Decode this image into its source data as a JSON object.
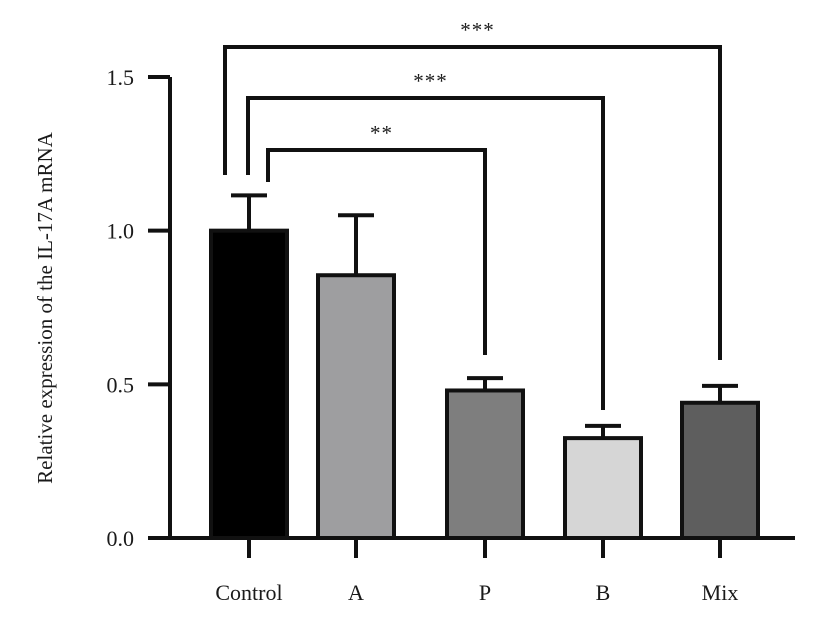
{
  "chart_data": {
    "type": "bar",
    "title": "",
    "xlabel": "",
    "ylabel": "Relative expression of the IL-17A mRNA",
    "ylim": [
      0,
      1.5
    ],
    "yticks": [
      0,
      0.5,
      1.0,
      1.5
    ],
    "ytick_labels": [
      "0.0",
      "0.5",
      "1.0",
      "1.5"
    ],
    "categories": [
      "Control",
      "A",
      "P",
      "B",
      "Mix"
    ],
    "values": [
      1.0,
      0.855,
      0.48,
      0.325,
      0.44
    ],
    "errors": [
      0.115,
      0.195,
      0.04,
      0.04,
      0.055
    ],
    "colors": [
      "#000000",
      "#9e9ea0",
      "#7e7e7e",
      "#d6d6d6",
      "#5e5e5e"
    ],
    "significance": [
      {
        "from": 0,
        "to": 2,
        "label": "**"
      },
      {
        "from": 0,
        "to": 3,
        "label": "***"
      },
      {
        "from": 0,
        "to": 4,
        "label": "***"
      }
    ]
  }
}
